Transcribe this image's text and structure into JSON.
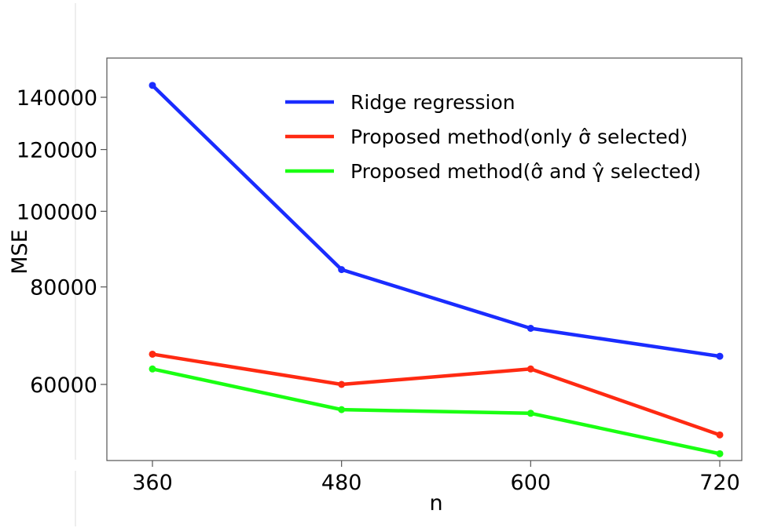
{
  "chart_data": {
    "type": "line",
    "title": "",
    "xlabel": "n",
    "ylabel": "MSE",
    "x": [
      360,
      480,
      600,
      720
    ],
    "x_tick_labels": [
      "360",
      "480",
      "600",
      "720"
    ],
    "y_ticks": [
      60000,
      80000,
      100000,
      120000,
      140000
    ],
    "y_tick_labels": [
      "60000",
      "80000",
      "100000",
      "120000",
      "140000"
    ],
    "y_scale": "log",
    "ylim": [
      45000,
      150000
    ],
    "grid": false,
    "legend_position": "top-right",
    "series": [
      {
        "name": "Ridge regression",
        "color": "#1a2cff",
        "values": [
          145000,
          84200,
          70800,
          65200
        ]
      },
      {
        "name": "Proposed method(only σ̂ selected)",
        "color": "#ff2a12",
        "values": [
          65600,
          60000,
          62800,
          51700
        ]
      },
      {
        "name": "Proposed method(σ̂ and γ̂ selected)",
        "color": "#1aff12",
        "values": [
          62800,
          55700,
          55100,
          48900
        ]
      }
    ]
  }
}
